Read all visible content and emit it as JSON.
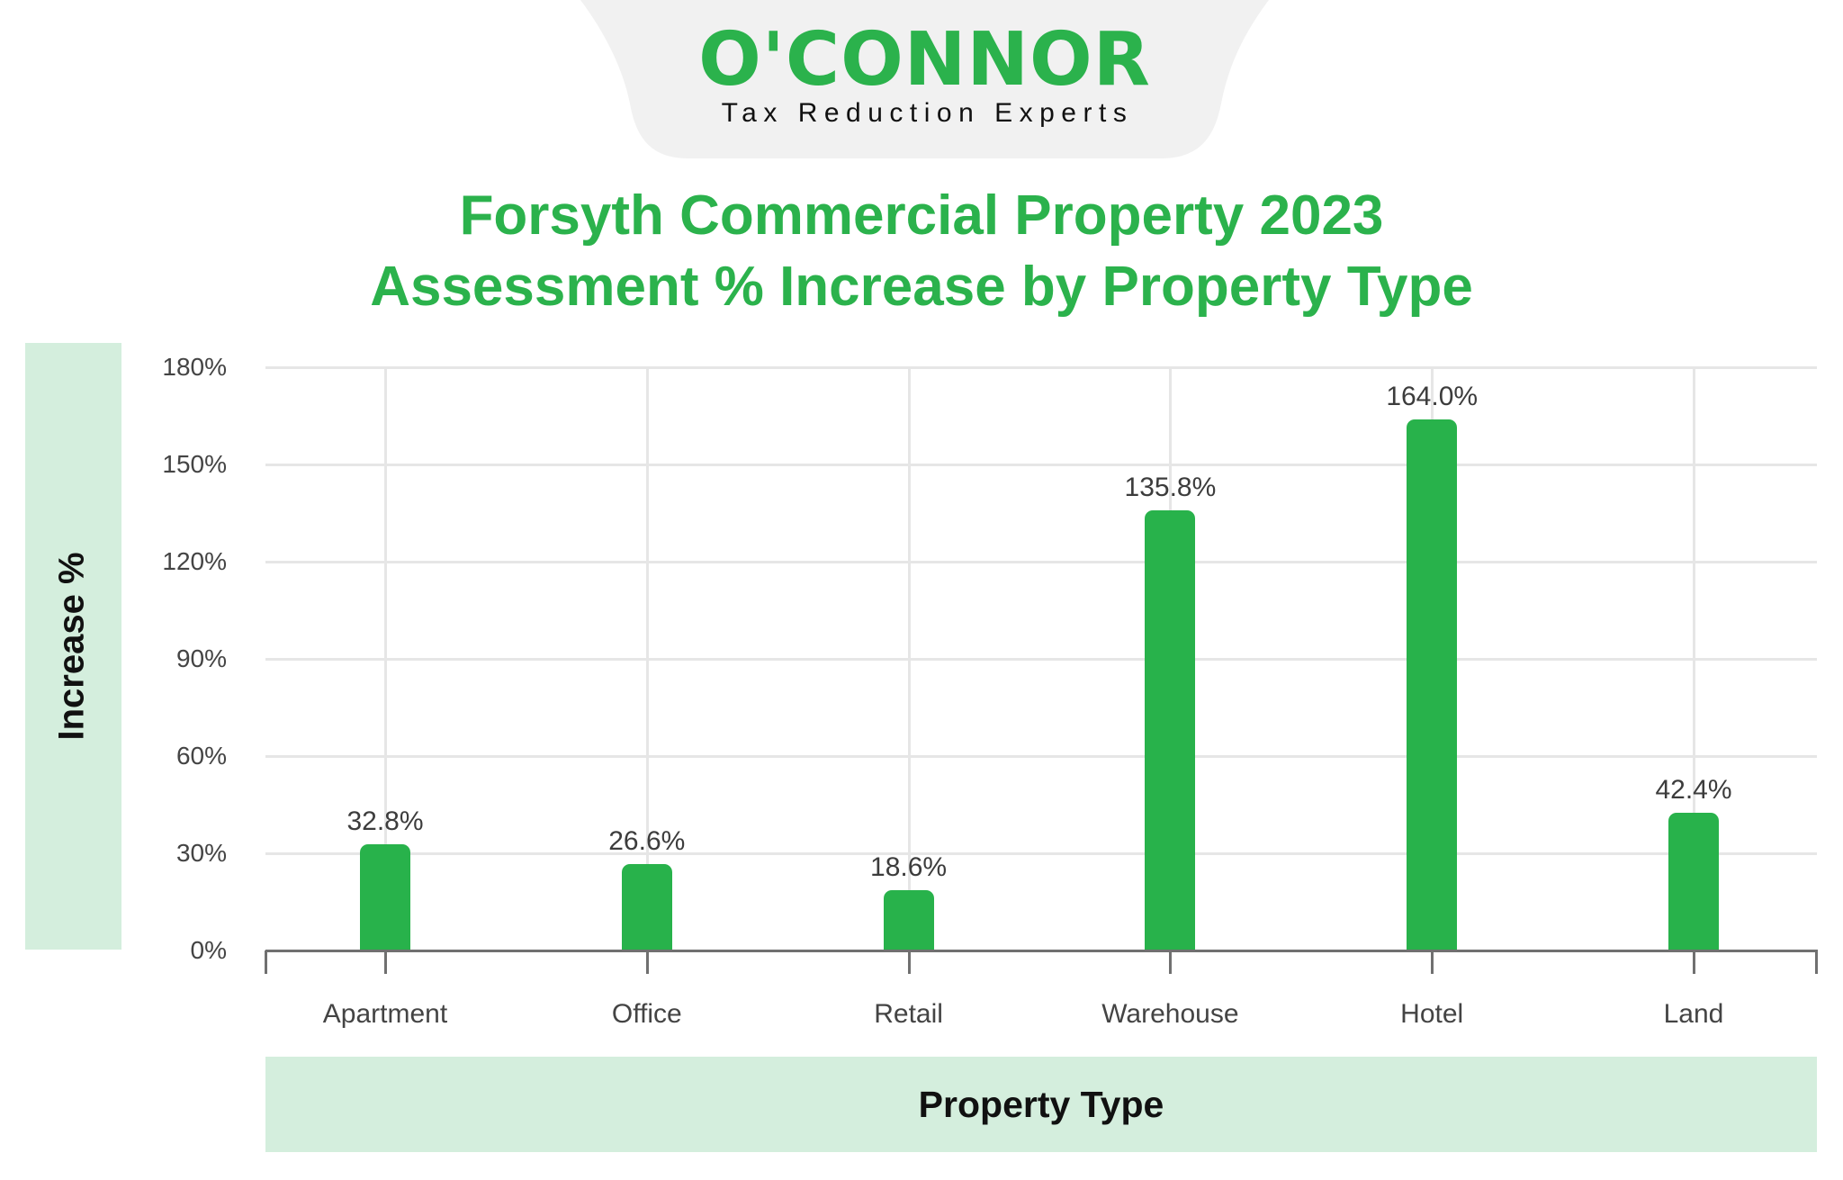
{
  "logo": {
    "name": "O'CONNOR",
    "tagline": "Tax Reduction Experts",
    "brand_color": "#2bb24c",
    "tab_color": "#f1f1f1"
  },
  "colors": {
    "title": "#2bb24c",
    "bar": "#28b24b",
    "axis_band": "#d4eedd",
    "grid": "#e6e6e6",
    "axis_line": "#707070"
  },
  "chart_data": {
    "type": "bar",
    "title": "Forsyth Commercial Property 2023 Assessment % Increase by Property Type",
    "title_lines": [
      "Forsyth Commercial Property 2023",
      "Assessment % Increase by Property Type"
    ],
    "xlabel": "Property Type",
    "ylabel": "Increase %",
    "categories": [
      "Apartment",
      "Office",
      "Retail",
      "Warehouse",
      "Hotel",
      "Land"
    ],
    "values": [
      32.8,
      26.6,
      18.6,
      135.8,
      164.0,
      42.4
    ],
    "value_labels": [
      "32.8%",
      "26.6%",
      "18.6%",
      "135.8%",
      "164.0%",
      "42.4%"
    ],
    "ylim": [
      0,
      180
    ],
    "yticks": [
      0,
      30,
      60,
      90,
      120,
      150,
      180
    ],
    "ytick_labels": [
      "0%",
      "30%",
      "60%",
      "90%",
      "120%",
      "150%",
      "180%"
    ],
    "grid": true,
    "legend": null
  }
}
